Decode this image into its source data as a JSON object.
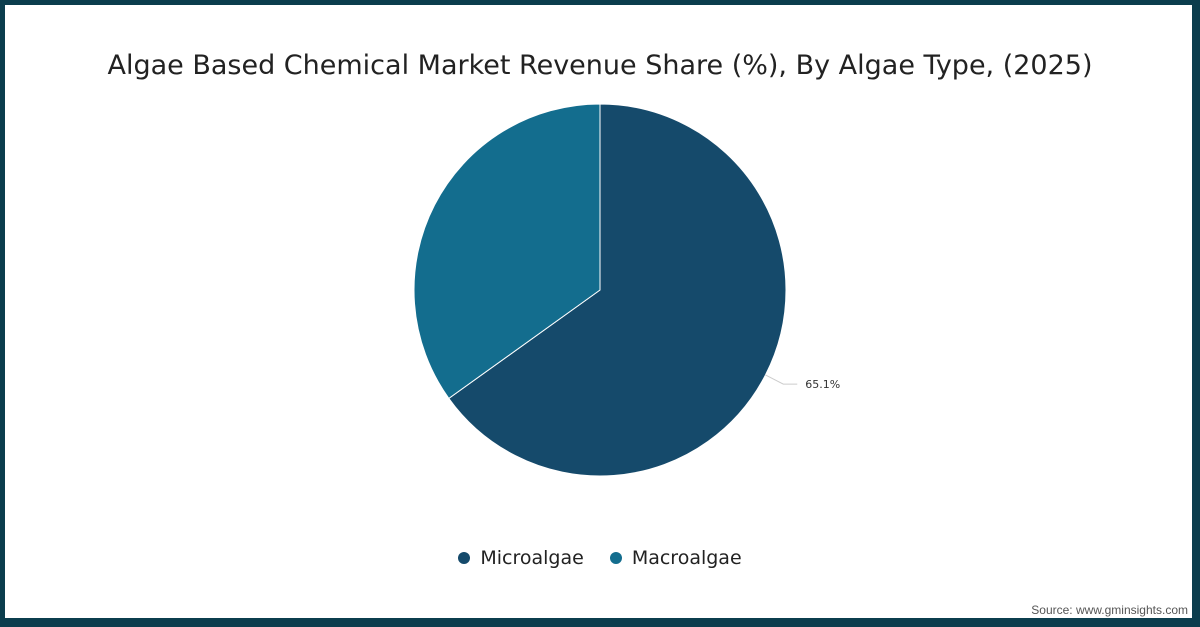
{
  "chart_data": {
    "type": "pie",
    "title": "Algae Based Chemical Market Revenue Share (%), By Algae Type, (2025)",
    "slices": [
      {
        "name": "Microalgae",
        "value": 65.1,
        "label": "65.1%",
        "color": "#154a6b"
      },
      {
        "name": "Macroalgae",
        "value": 34.9,
        "label": "",
        "color": "#136d8e"
      }
    ],
    "legend_position": "bottom"
  },
  "source": "Source: www.gminsights.com"
}
